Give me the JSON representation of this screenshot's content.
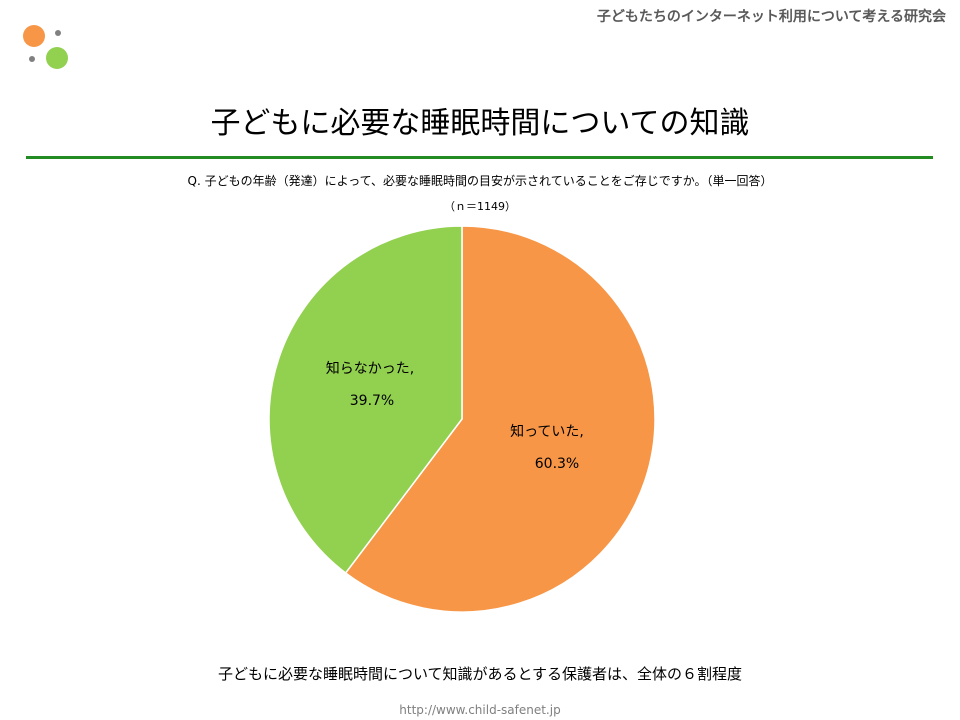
{
  "header": {
    "organization": "子どもたちのインターネット利用について考える研究会"
  },
  "colors": {
    "orange": "#f79646",
    "green": "#92d050",
    "rule": "#228b22",
    "logo_dot": "#808080"
  },
  "chart_data": {
    "type": "pie",
    "title": "子どもに必要な睡眠時間についての知識",
    "subtitle": "Q.  子どもの年齢（発達）によって、必要な睡眠時間の目安が示されていることをご存じですか。（単一回答）",
    "sample_size": "（ｎ＝1149）",
    "slices": [
      {
        "label": "知っていた,",
        "value_label": "60.3%",
        "value": 60.3,
        "color": "#f79646"
      },
      {
        "label": "知らなかった,",
        "value_label": "39.7%",
        "value": 39.7,
        "color": "#92d050"
      }
    ]
  },
  "footer": {
    "summary": "子どもに必要な睡眠時間について知識があるとする保護者は、全体の６割程度",
    "url": "http://www.child-safenet.jp"
  }
}
